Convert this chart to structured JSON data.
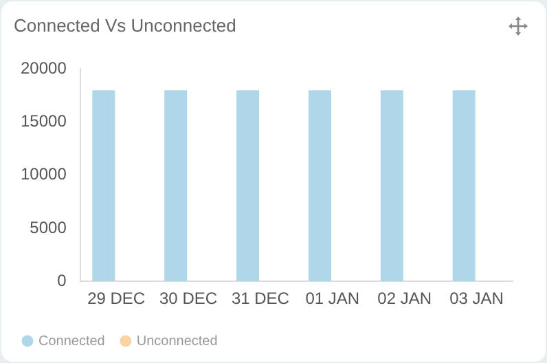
{
  "chart_data": {
    "type": "bar",
    "title": "Connected Vs Unconnected",
    "categories": [
      "29 DEC",
      "30 DEC",
      "31 DEC",
      "01 JAN",
      "02 JAN",
      "03 JAN"
    ],
    "series": [
      {
        "name": "Connected",
        "color": "#b0d7e9",
        "values": [
          18000,
          18000,
          18000,
          18000,
          18000,
          18000
        ]
      },
      {
        "name": "Unconnected",
        "color": "#fbd3a3",
        "values": [
          0,
          0,
          0,
          0,
          0,
          0
        ]
      }
    ],
    "ylim": [
      0,
      20000
    ],
    "yticks": [
      0,
      5000,
      10000,
      15000,
      20000
    ],
    "grid": false,
    "legend": "bottom left"
  }
}
